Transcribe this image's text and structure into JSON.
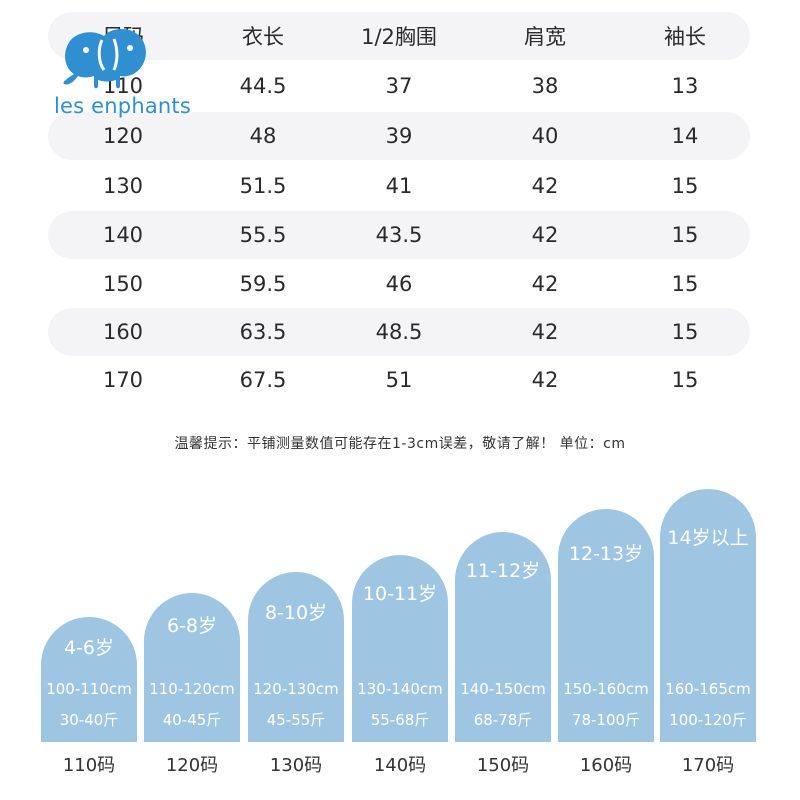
{
  "brand": {
    "logo_text": "les enphants",
    "logo_icon": "elephant-icon",
    "brand_color": "#2f8fd1"
  },
  "table": {
    "headers": [
      "尺码",
      "衣长",
      "1/2胸围",
      "肩宽",
      "袖长"
    ],
    "rows": [
      [
        "110",
        "44.5",
        "37",
        "38",
        "13"
      ],
      [
        "120",
        "48",
        "39",
        "40",
        "14"
      ],
      [
        "130",
        "51.5",
        "41",
        "42",
        "15"
      ],
      [
        "140",
        "55.5",
        "43.5",
        "42",
        "15"
      ],
      [
        "150",
        "59.5",
        "46",
        "42",
        "15"
      ],
      [
        "160",
        "63.5",
        "48.5",
        "42",
        "15"
      ],
      [
        "170",
        "67.5",
        "51",
        "42",
        "15"
      ]
    ],
    "shade_color": "#f4f4f6"
  },
  "note": "温馨提示：平铺测量数值可能存在1-3cm误差，敬请了解！ 单位：cm",
  "age_guide": {
    "card_color": "#9ec6e3",
    "cards": [
      {
        "age": "4-6岁",
        "height": "100-110cm",
        "weight": "30-40斤",
        "size": "110码"
      },
      {
        "age": "6-8岁",
        "height": "110-120cm",
        "weight": "40-45斤",
        "size": "120码"
      },
      {
        "age": "8-10岁",
        "height": "120-130cm",
        "weight": "45-55斤",
        "size": "130码"
      },
      {
        "age": "10-11岁",
        "height": "130-140cm",
        "weight": "55-68斤",
        "size": "140码"
      },
      {
        "age": "11-12岁",
        "height": "140-150cm",
        "weight": "68-78斤",
        "size": "150码"
      },
      {
        "age": "12-13岁",
        "height": "150-160cm",
        "weight": "78-100斤",
        "size": "160码"
      },
      {
        "age": "14岁以上",
        "height": "160-165cm",
        "weight": "100-120斤",
        "size": "170码"
      }
    ]
  }
}
